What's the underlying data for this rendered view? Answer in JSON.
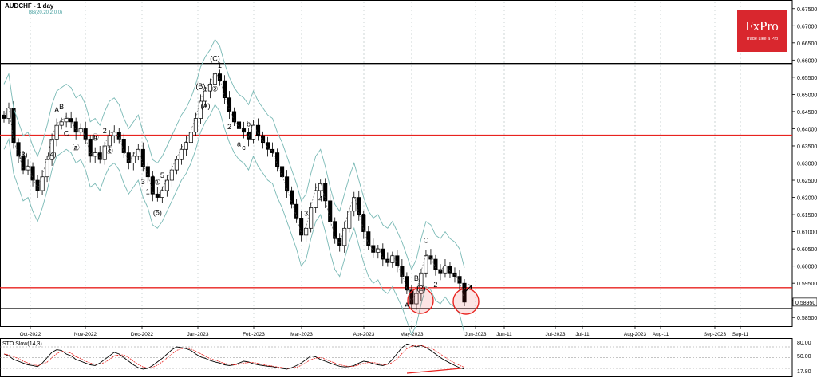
{
  "header": {
    "title": "AUDCHF - 1 day",
    "indicator": "BB(20,20,2,0,0)"
  },
  "logo": {
    "brand": "FxPro",
    "tagline": "Trade Like a Pro"
  },
  "stochastic": {
    "label": "STO Slow(14,3)",
    "levels": [
      "80.00",
      "50.00",
      "17.80"
    ]
  },
  "colors": {
    "resistance": "#e8231f",
    "support": "#000000",
    "bands": "#79b9b5",
    "circle": "#e8231f",
    "stoch": "#000000",
    "stoch_signal": "#e8231f"
  },
  "chart_data": {
    "type": "candlestick",
    "symbol": "AUDCHF",
    "timeframe": "1 day",
    "y_ticks": [
      "0.67500",
      "0.67000",
      "0.66500",
      "0.66000",
      "0.65500",
      "0.65000",
      "0.64500",
      "0.64000",
      "0.63500",
      "0.63000",
      "0.62500",
      "0.62000",
      "0.61500",
      "0.61000",
      "0.60500",
      "0.60000",
      "0.59500",
      "0.59000",
      "0.58500"
    ],
    "ylim": [
      0.5825,
      0.6775
    ],
    "x_ticks": [
      "Oct-2022",
      "Nov-2022",
      "Dec-2022",
      "Jan-2023",
      "Feb-2023",
      "Mar-2023",
      "Apr-2023",
      "May-2023",
      "Jun-2023",
      "Jun-11",
      "Jul-2023",
      "Jul-11",
      "Aug-2023",
      "Aug-11",
      "Sep-2023",
      "Sep-11"
    ],
    "current_price": "0.58950",
    "horizontal_levels": [
      {
        "price": 0.659,
        "color": "black"
      },
      {
        "price": 0.6381,
        "color": "red"
      },
      {
        "price": 0.5937,
        "color": "red"
      },
      {
        "price": 0.5876,
        "color": "black"
      }
    ],
    "wave_labels": [
      "(3)",
      "(4)",
      "A",
      "C",
      "B",
      "a",
      "b",
      "c",
      "2",
      "1",
      "4",
      "3",
      "5",
      "(5)",
      "①",
      "(A)",
      "(C)",
      "②",
      "(B)",
      "2",
      "1",
      "a",
      "b",
      "c",
      "3",
      "4",
      "5",
      "A",
      "B",
      "(2)",
      "C",
      "2",
      "3",
      "ⓐ",
      "ⓑ",
      "ⓒ"
    ],
    "close_path": [
      0.643,
      0.646,
      0.636,
      0.632,
      0.628,
      0.629,
      0.625,
      0.622,
      0.626,
      0.631,
      0.637,
      0.641,
      0.642,
      0.643,
      0.642,
      0.639,
      0.64,
      0.637,
      0.632,
      0.633,
      0.631,
      0.635,
      0.638,
      0.639,
      0.637,
      0.633,
      0.63,
      0.632,
      0.634,
      0.629,
      0.626,
      0.621,
      0.62,
      0.622,
      0.625,
      0.628,
      0.631,
      0.634,
      0.636,
      0.639,
      0.643,
      0.648,
      0.651,
      0.653,
      0.656,
      0.654,
      0.649,
      0.645,
      0.642,
      0.64,
      0.639,
      0.637,
      0.641,
      0.638,
      0.636,
      0.634,
      0.633,
      0.629,
      0.626,
      0.622,
      0.618,
      0.614,
      0.609,
      0.611,
      0.617,
      0.622,
      0.624,
      0.619,
      0.613,
      0.608,
      0.606,
      0.611,
      0.616,
      0.62,
      0.615,
      0.61,
      0.606,
      0.604,
      0.605,
      0.602,
      0.601,
      0.603,
      0.6,
      0.597,
      0.593,
      0.589,
      0.592,
      0.598,
      0.603,
      0.602,
      0.599,
      0.598,
      0.6,
      0.598,
      0.597,
      0.595,
      0.5895
    ],
    "stochastic_values": [
      60,
      55,
      45,
      40,
      35,
      30,
      28,
      25,
      35,
      50,
      65,
      72,
      70,
      60,
      55,
      45,
      40,
      35,
      30,
      28,
      35,
      45,
      55,
      65,
      60,
      50,
      40,
      30,
      22,
      18,
      20,
      28,
      38,
      48,
      60,
      72,
      80,
      78,
      75,
      70,
      60,
      52,
      48,
      42,
      38,
      35,
      30,
      28,
      30,
      35,
      40,
      38,
      33,
      30,
      28,
      26,
      25,
      22,
      20,
      18,
      22,
      28,
      35,
      45,
      55,
      52,
      45,
      40,
      35,
      30,
      26,
      24,
      25,
      28,
      35,
      40,
      38,
      33,
      30,
      28,
      32,
      45,
      62,
      78,
      88,
      85,
      80,
      84,
      78,
      70,
      60,
      50,
      42,
      35,
      28,
      22,
      18
    ]
  }
}
